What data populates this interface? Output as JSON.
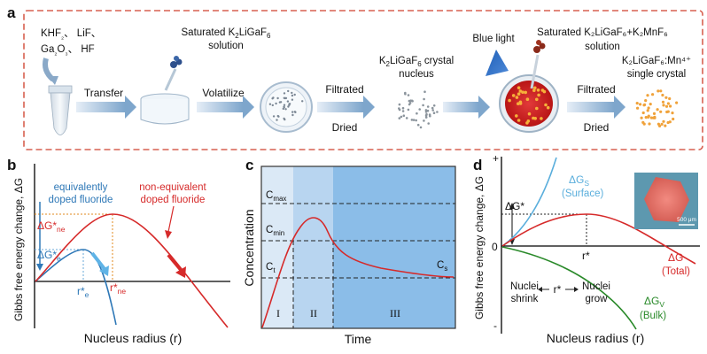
{
  "panel_a": {
    "letter": "a",
    "reagents": [
      "KHF",
      "₂",
      "、 LiF、",
      "Ga",
      "₂",
      "O",
      "₃",
      "、 HF"
    ],
    "transfer": "Transfer",
    "saturated_1_l1": "Saturated K",
    "saturated_1_sub1": "2",
    "saturated_1_mid": "LiGaF",
    "saturated_1_sub2": "6",
    "saturated_1_l2": "solution",
    "volatilize": "Volatilize",
    "nucleus_l1a": "K",
    "nucleus_sub1": "2",
    "nucleus_l1b": "LiGaF",
    "nucleus_sub2": "6",
    "nucleus_l1c": " crystal",
    "nucleus_l2": "nucleus",
    "filtrated": "Filtrated",
    "dried": "Dried",
    "blue_light": "Blue light",
    "saturated_2_l1": "Saturated K₂LiGaF₆+K₂MnF₆",
    "saturated_2_l2": "solution",
    "filtrated_2": "Filtrated",
    "dried_2": "Dried",
    "product_l1": "K₂LiGaF₆:Mn⁴⁺",
    "product_l2": "single crystal"
  },
  "panel_b": {
    "letter": "b",
    "ylabel": "Gibbs free energy change, ΔG",
    "xlabel": "Nucleus radius (r)",
    "label_blue_1": "equivalently",
    "label_blue_2": "doped fluoride",
    "label_red_1": "non-equivalent",
    "label_red_2": "doped fluoride",
    "dg_ne_main": "ΔG*",
    "dg_ne_sub": "ne",
    "dg_e_main": "ΔG*",
    "dg_e_sub": "e",
    "r_e_main": "r*",
    "r_e_sub": "e",
    "r_ne_main": "r*",
    "r_ne_sub": "ne",
    "color_blue": "#2e78b7",
    "color_red": "#d62a2a",
    "color_orange": "#e08a1e"
  },
  "panel_c": {
    "letter": "c",
    "ylabel": "Concentration",
    "xlabel": "Time",
    "c_max": "C",
    "c_max_sub": "max",
    "c_min": "C",
    "c_min_sub": "min",
    "c_t": "C",
    "c_t_sub": "t",
    "c_s": "C",
    "c_s_sub": "s",
    "region_1": "I",
    "region_2": "II",
    "region_3": "III"
  },
  "panel_d": {
    "letter": "d",
    "ylabel": "Gibbs free energy change, ΔG",
    "xlabel": "Nucleus radius (r)",
    "plus": "+",
    "zero": "0",
    "minus": "-",
    "dg_star": "ΔG*",
    "dgs_main": "ΔG",
    "dgs_sub": "S",
    "dgs_note": "(Surface)",
    "r_star": "r*",
    "dg_total": "ΔG",
    "dg_total_note": "(Total)",
    "dgv_main": "ΔG",
    "dgv_sub": "V",
    "dgv_note": "(Bulk)",
    "nuclei_shrink_1": "Nuclei",
    "nuclei_shrink_2": "shrink",
    "r_star_mid": "r*",
    "nuclei_grow_1": "Nuclei",
    "nuclei_grow_2": "grow",
    "scalebar": "500 μm",
    "color_surface": "#5aaedc",
    "color_total": "#d62a2a",
    "color_bulk": "#2a8a2a"
  }
}
